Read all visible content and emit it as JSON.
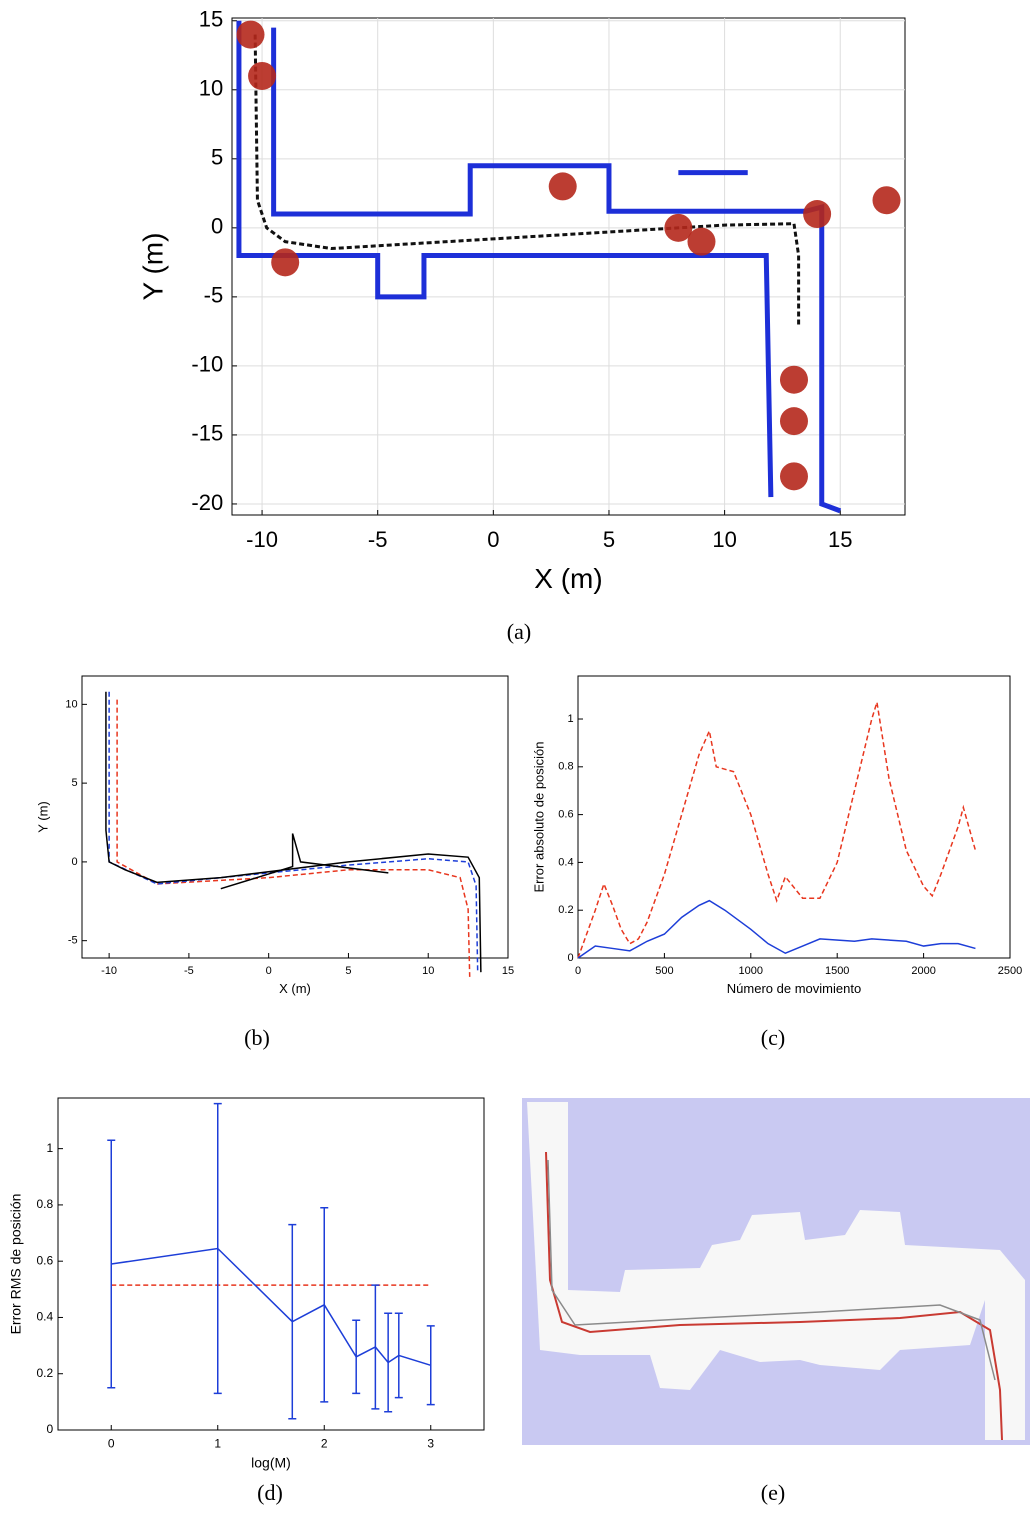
{
  "chart_data": [
    {
      "type": "scatter",
      "caption": "(a)",
      "xlabel": "X (m)",
      "ylabel": "Y (m)",
      "xlim": [
        -11.3,
        17.8
      ],
      "ylim": [
        -20.8,
        15.2
      ],
      "xticks": [
        -10,
        -5,
        0,
        5,
        10,
        15
      ],
      "yticks": [
        15,
        10,
        5,
        0,
        -5,
        -10,
        -15,
        -20
      ],
      "grid": true,
      "series": [
        {
          "color": "#1d2fd8",
          "linestyle": "solid",
          "linewidth": 5,
          "x": [
            -9.5,
            -9.5,
            -1,
            -1,
            5,
            5,
            13.5,
            14.2,
            14.2,
            15
          ],
          "values": [
            14.5,
            1,
            1,
            4.5,
            4.5,
            1.2,
            1.2,
            1.5,
            -20,
            -20.5
          ]
        },
        {
          "color": "#1d2fd8",
          "linestyle": "solid",
          "linewidth": 5,
          "x": [
            -11,
            -11,
            -5,
            -5,
            -3,
            -3,
            11.8,
            12
          ],
          "values": [
            15,
            -2,
            -2,
            -5,
            -5,
            -2,
            -2,
            -19.5
          ]
        },
        {
          "color": "#1d2fd8",
          "linestyle": "solid",
          "linewidth": 5,
          "x": [
            8,
            11
          ],
          "values": [
            4,
            4
          ]
        },
        {
          "color": "#111111",
          "linestyle": "dashed",
          "linewidth": 3,
          "x": [
            -10.3,
            -10.2,
            -9.8,
            -9,
            -7,
            -2,
            3,
            10,
            13,
            13.2,
            13.2
          ],
          "values": [
            14,
            2,
            0,
            -1,
            -1.5,
            -1,
            -0.5,
            0.2,
            0.3,
            -2,
            -7
          ]
        },
        {
          "color": "#b5281c",
          "linestyle": "none",
          "marker": "o",
          "x": [
            -10.5,
            -10,
            -9,
            3,
            8,
            9,
            14,
            17,
            13,
            13,
            13
          ],
          "values": [
            14,
            11,
            -2.5,
            3,
            0,
            -1,
            1,
            2,
            -11,
            -14,
            -18
          ]
        }
      ]
    },
    {
      "type": "line",
      "caption": "(b)",
      "xlabel": "X (m)",
      "ylabel": "Y (m)",
      "xlim": [
        -11.7,
        15
      ],
      "ylim": [
        -6.1,
        11.8
      ],
      "xticks": [
        -10,
        -5,
        0,
        5,
        10,
        15
      ],
      "yticks": [
        -5,
        0,
        5,
        10
      ],
      "grid": false,
      "series": [
        {
          "color": "#e8361e",
          "linestyle": "dashed",
          "linewidth": 1.5,
          "x": [
            -9.5,
            -9.5,
            -7,
            0,
            5,
            10,
            12,
            12.5,
            12.6
          ],
          "values": [
            10.3,
            0,
            -1.4,
            -1,
            -0.5,
            -0.5,
            -1,
            -3,
            -7.3
          ]
        },
        {
          "color": "#1d3ed8",
          "linestyle": "dashed",
          "linewidth": 1.5,
          "x": [
            -10,
            -10,
            -7,
            0,
            5,
            10,
            12.5,
            13,
            13.1
          ],
          "values": [
            10.8,
            0,
            -1.4,
            -0.7,
            -0.2,
            0.2,
            0,
            -1.5,
            -7
          ]
        },
        {
          "color": "#000000",
          "linestyle": "solid",
          "linewidth": 1.5,
          "x": [
            -10.2,
            -10.2,
            -10,
            -9,
            -7,
            -3,
            1,
            5,
            10,
            12.5,
            13.2,
            13.3
          ],
          "values": [
            10.8,
            2,
            0,
            -0.5,
            -1.3,
            -1,
            -0.5,
            0,
            0.5,
            0.3,
            -1,
            -7
          ]
        },
        {
          "color": "#000000",
          "linestyle": "solid",
          "linewidth": 1.5,
          "x": [
            -3,
            1.5,
            1.5,
            2,
            7.5
          ],
          "values": [
            -1.7,
            -0.3,
            1.8,
            0,
            -0.7
          ]
        }
      ]
    },
    {
      "type": "line",
      "caption": "(c)",
      "xlabel": "Número de movimiento",
      "ylabel": "Error absoluto de posición",
      "xlim": [
        0,
        2500
      ],
      "ylim": [
        0,
        1.18
      ],
      "xticks": [
        0,
        500,
        1000,
        1500,
        2000,
        2500
      ],
      "yticks": [
        0,
        0.2,
        0.4,
        0.6,
        0.8,
        1
      ],
      "grid": false,
      "series": [
        {
          "color": "#e8361e",
          "linestyle": "dashed",
          "linewidth": 1.5,
          "x": [
            0,
            100,
            150,
            200,
            250,
            300,
            350,
            400,
            500,
            600,
            700,
            760,
            800,
            900,
            1000,
            1100,
            1150,
            1200,
            1300,
            1400,
            1500,
            1600,
            1700,
            1730,
            1800,
            1900,
            2000,
            2050,
            2100,
            2200,
            2230,
            2300
          ],
          "values": [
            0,
            0.2,
            0.31,
            0.22,
            0.12,
            0.06,
            0.08,
            0.15,
            0.35,
            0.6,
            0.85,
            0.95,
            0.8,
            0.78,
            0.6,
            0.35,
            0.24,
            0.34,
            0.25,
            0.25,
            0.4,
            0.7,
            1,
            1.07,
            0.75,
            0.45,
            0.3,
            0.26,
            0.35,
            0.55,
            0.63,
            0.45
          ]
        },
        {
          "color": "#1d3ed8",
          "linestyle": "solid",
          "linewidth": 1.5,
          "x": [
            0,
            100,
            200,
            300,
            400,
            500,
            600,
            700,
            760,
            850,
            1000,
            1100,
            1200,
            1300,
            1400,
            1600,
            1700,
            1900,
            2000,
            2100,
            2200,
            2300
          ],
          "values": [
            0,
            0.05,
            0.04,
            0.03,
            0.07,
            0.1,
            0.17,
            0.22,
            0.24,
            0.2,
            0.12,
            0.06,
            0.02,
            0.05,
            0.08,
            0.07,
            0.08,
            0.07,
            0.05,
            0.06,
            0.06,
            0.04
          ]
        }
      ]
    },
    {
      "type": "errorbar",
      "caption": "(d)",
      "xlabel": "log(M)",
      "ylabel": "Error RMS de posición",
      "xlim": [
        -0.5,
        3.5
      ],
      "ylim": [
        0,
        1.18
      ],
      "xticks": [
        0,
        1,
        2,
        3
      ],
      "yticks": [
        0,
        0.2,
        0.4,
        0.6,
        0.8,
        1
      ],
      "grid": false,
      "series": [
        {
          "color": "#e8361e",
          "linestyle": "dashed",
          "linewidth": 1.5,
          "x": [
            0,
            3
          ],
          "values": [
            0.515,
            0.515
          ]
        },
        {
          "color": "#1d3ed8",
          "linestyle": "solid",
          "linewidth": 1.5,
          "x": [
            0,
            1,
            1.7,
            2,
            2.3,
            2.48,
            2.6,
            2.7,
            3
          ],
          "values": [
            0.59,
            0.645,
            0.385,
            0.445,
            0.26,
            0.295,
            0.24,
            0.265,
            0.23
          ],
          "errors": [
            0.44,
            0.515,
            0.345,
            0.345,
            0.13,
            0.22,
            0.175,
            0.15,
            0.14
          ]
        }
      ]
    },
    {
      "type": "image",
      "caption": "(e)"
    }
  ]
}
